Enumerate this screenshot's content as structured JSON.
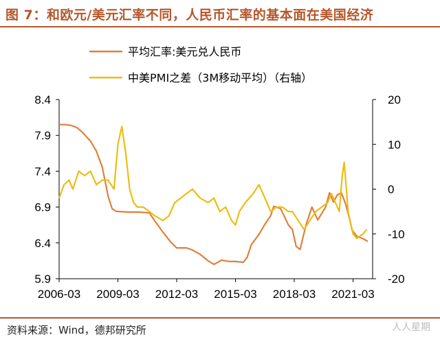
{
  "title": "图 7：和欧元/美元汇率不同，人民币汇率的基本面在美国经济",
  "source": "资料来源：Wind，德邦研究所",
  "watermark": "人人星期",
  "chart_data": {
    "type": "line",
    "title": "图 7：和欧元/美元汇率不同，人民币汇率的基本面在美国经济",
    "x_ticks": [
      "2006-03",
      "2009-03",
      "2012-03",
      "2015-03",
      "2018-03",
      "2021-03"
    ],
    "x_range": [
      2006.0,
      2022.0
    ],
    "left_axis": {
      "ticks": [
        "8.4",
        "7.9",
        "7.4",
        "6.9",
        "6.4",
        "5.9"
      ],
      "range": [
        5.9,
        8.4
      ]
    },
    "right_axis": {
      "ticks": [
        "20",
        "10",
        "0",
        "-10",
        "-20"
      ],
      "range": [
        -20,
        20
      ]
    },
    "series": [
      {
        "name": "平均汇率:美元兑人民币",
        "axis": "left",
        "color": "#e07f3a",
        "points": [
          [
            2006.0,
            8.05
          ],
          [
            2006.3,
            8.05
          ],
          [
            2006.6,
            8.04
          ],
          [
            2006.9,
            8.01
          ],
          [
            2007.2,
            7.94
          ],
          [
            2007.6,
            7.82
          ],
          [
            2007.9,
            7.68
          ],
          [
            2008.2,
            7.46
          ],
          [
            2008.5,
            7.05
          ],
          [
            2008.7,
            6.88
          ],
          [
            2008.9,
            6.84
          ],
          [
            2009.5,
            6.83
          ],
          [
            2010.0,
            6.83
          ],
          [
            2010.6,
            6.82
          ],
          [
            2010.9,
            6.7
          ],
          [
            2011.3,
            6.55
          ],
          [
            2011.7,
            6.41
          ],
          [
            2012.0,
            6.33
          ],
          [
            2012.5,
            6.33
          ],
          [
            2012.8,
            6.3
          ],
          [
            2013.2,
            6.24
          ],
          [
            2013.6,
            6.15
          ],
          [
            2013.9,
            6.1
          ],
          [
            2014.3,
            6.16
          ],
          [
            2014.7,
            6.14
          ],
          [
            2015.0,
            6.14
          ],
          [
            2015.4,
            6.13
          ],
          [
            2015.6,
            6.2
          ],
          [
            2015.8,
            6.37
          ],
          [
            2016.2,
            6.52
          ],
          [
            2016.5,
            6.66
          ],
          [
            2016.8,
            6.78
          ],
          [
            2016.95,
            6.91
          ],
          [
            2017.3,
            6.88
          ],
          [
            2017.7,
            6.65
          ],
          [
            2017.9,
            6.59
          ],
          [
            2018.1,
            6.35
          ],
          [
            2018.3,
            6.31
          ],
          [
            2018.6,
            6.65
          ],
          [
            2018.9,
            6.9
          ],
          [
            2019.2,
            6.72
          ],
          [
            2019.6,
            6.9
          ],
          [
            2019.8,
            7.1
          ],
          [
            2020.0,
            6.97
          ],
          [
            2020.2,
            7.07
          ],
          [
            2020.4,
            7.1
          ],
          [
            2020.6,
            6.96
          ],
          [
            2020.8,
            6.76
          ],
          [
            2020.95,
            6.58
          ],
          [
            2021.2,
            6.49
          ],
          [
            2021.5,
            6.46
          ],
          [
            2021.75,
            6.42
          ]
        ]
      },
      {
        "name": "中美PMI之差（3M移动平均）（右轴）",
        "axis": "right",
        "color": "#ecbd12",
        "points": [
          [
            2006.0,
            -2
          ],
          [
            2006.25,
            1
          ],
          [
            2006.5,
            2
          ],
          [
            2006.7,
            0
          ],
          [
            2007.0,
            4
          ],
          [
            2007.3,
            3
          ],
          [
            2007.6,
            4
          ],
          [
            2007.9,
            1
          ],
          [
            2008.2,
            2
          ],
          [
            2008.5,
            2
          ],
          [
            2008.8,
            0
          ],
          [
            2009.0,
            10
          ],
          [
            2009.2,
            14
          ],
          [
            2009.4,
            8
          ],
          [
            2009.6,
            0
          ],
          [
            2009.8,
            -3
          ],
          [
            2010.0,
            -4
          ],
          [
            2010.3,
            -4
          ],
          [
            2010.6,
            -5
          ],
          [
            2010.9,
            -6
          ],
          [
            2011.3,
            -7
          ],
          [
            2011.6,
            -6
          ],
          [
            2011.9,
            -3
          ],
          [
            2012.2,
            -2
          ],
          [
            2012.5,
            -1
          ],
          [
            2012.8,
            0
          ],
          [
            2013.2,
            -2
          ],
          [
            2013.6,
            -3
          ],
          [
            2013.9,
            -2
          ],
          [
            2014.2,
            -5
          ],
          [
            2014.5,
            -4
          ],
          [
            2014.8,
            -7
          ],
          [
            2015.0,
            -8
          ],
          [
            2015.2,
            -5
          ],
          [
            2015.5,
            -3
          ],
          [
            2015.9,
            -1
          ],
          [
            2016.2,
            1
          ],
          [
            2016.5,
            -2
          ],
          [
            2016.8,
            -5
          ],
          [
            2017.1,
            -4
          ],
          [
            2017.4,
            -4
          ],
          [
            2017.7,
            -5
          ],
          [
            2017.9,
            -5
          ],
          [
            2018.2,
            -7
          ],
          [
            2018.5,
            -9
          ],
          [
            2018.8,
            -7
          ],
          [
            2019.1,
            -5
          ],
          [
            2019.4,
            -4
          ],
          [
            2019.7,
            -3
          ],
          [
            2019.9,
            -1
          ],
          [
            2020.1,
            -3
          ],
          [
            2020.3,
            -5
          ],
          [
            2020.45,
            3
          ],
          [
            2020.55,
            6
          ],
          [
            2020.75,
            -5
          ],
          [
            2021.0,
            -10
          ],
          [
            2021.2,
            -11
          ],
          [
            2021.5,
            -10
          ],
          [
            2021.7,
            -9
          ]
        ]
      }
    ]
  }
}
